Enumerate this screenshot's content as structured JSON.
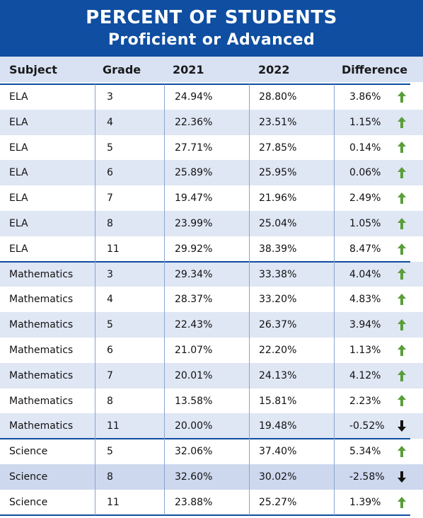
{
  "title": {
    "line1": "PERCENT OF STUDENTS",
    "line2": "Proficient or Advanced"
  },
  "colors": {
    "brand": "#0f4ea1",
    "row_alt": "#dfe6f4",
    "row_alt_dark": "#cdd8ee",
    "up_arrow": "#5a9e3a",
    "down_arrow": "#111111"
  },
  "chart_data": {
    "type": "table",
    "columns": [
      "Subject",
      "Grade",
      "2021",
      "2022",
      "Difference"
    ],
    "rows": [
      {
        "subject": "ELA",
        "grade": "3",
        "y2021": "24.94%",
        "y2022": "28.80%",
        "difference": "3.86%",
        "trend": "up-arrow-icon"
      },
      {
        "subject": "ELA",
        "grade": "4",
        "y2021": "22.36%",
        "y2022": "23.51%",
        "difference": "1.15%",
        "trend": "up-arrow-icon"
      },
      {
        "subject": "ELA",
        "grade": "5",
        "y2021": "27.71%",
        "y2022": "27.85%",
        "difference": "0.14%",
        "trend": "up-arrow-icon"
      },
      {
        "subject": "ELA",
        "grade": "6",
        "y2021": "25.89%",
        "y2022": "25.95%",
        "difference": "0.06%",
        "trend": "up-arrow-icon"
      },
      {
        "subject": "ELA",
        "grade": "7",
        "y2021": "19.47%",
        "y2022": "21.96%",
        "difference": "2.49%",
        "trend": "up-arrow-icon"
      },
      {
        "subject": "ELA",
        "grade": "8",
        "y2021": "23.99%",
        "y2022": "25.04%",
        "difference": "1.05%",
        "trend": "up-arrow-icon"
      },
      {
        "subject": "ELA",
        "grade": "11",
        "y2021": "29.92%",
        "y2022": "38.39%",
        "difference": "8.47%",
        "trend": "up-arrow-icon"
      },
      {
        "subject": "Mathematics",
        "grade": "3",
        "y2021": "29.34%",
        "y2022": "33.38%",
        "difference": "4.04%",
        "trend": "up-arrow-icon"
      },
      {
        "subject": "Mathematics",
        "grade": "4",
        "y2021": "28.37%",
        "y2022": "33.20%",
        "difference": "4.83%",
        "trend": "up-arrow-icon"
      },
      {
        "subject": "Mathematics",
        "grade": "5",
        "y2021": "22.43%",
        "y2022": "26.37%",
        "difference": "3.94%",
        "trend": "up-arrow-icon"
      },
      {
        "subject": "Mathematics",
        "grade": "6",
        "y2021": "21.07%",
        "y2022": "22.20%",
        "difference": "1.13%",
        "trend": "up-arrow-icon"
      },
      {
        "subject": "Mathematics",
        "grade": "7",
        "y2021": "20.01%",
        "y2022": "24.13%",
        "difference": "4.12%",
        "trend": "up-arrow-icon"
      },
      {
        "subject": "Mathematics",
        "grade": "8",
        "y2021": "13.58%",
        "y2022": "15.81%",
        "difference": "2.23%",
        "trend": "up-arrow-icon"
      },
      {
        "subject": "Mathematics",
        "grade": "11",
        "y2021": "20.00%",
        "y2022": "19.48%",
        "difference": "-0.52%",
        "trend": "down-arrow-icon"
      },
      {
        "subject": "Science",
        "grade": "5",
        "y2021": "32.06%",
        "y2022": "37.40%",
        "difference": "5.34%",
        "trend": "up-arrow-icon"
      },
      {
        "subject": "Science",
        "grade": "8",
        "y2021": "32.60%",
        "y2022": "30.02%",
        "difference": "-2.58%",
        "trend": "down-arrow-icon"
      },
      {
        "subject": "Science",
        "grade": "11",
        "y2021": "23.88%",
        "y2022": "25.27%",
        "difference": "1.39%",
        "trend": "up-arrow-icon"
      }
    ]
  }
}
